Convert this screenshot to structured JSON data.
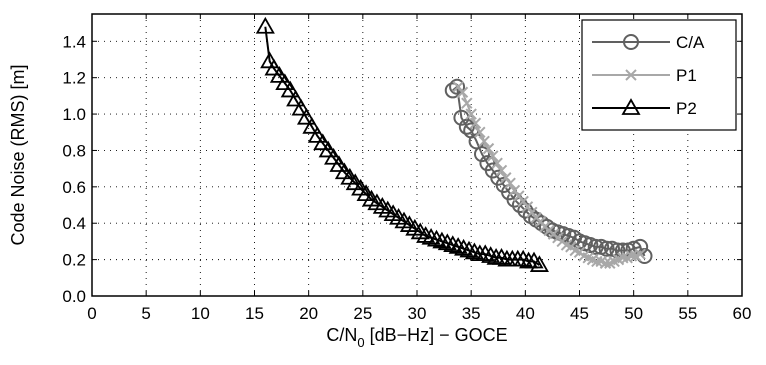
{
  "chart_data": {
    "type": "line",
    "xlabel": {
      "main": "C/N",
      "sub": "0",
      "rest": " [dB−Hz] − GOCE"
    },
    "ylabel": "Code Noise (RMS) [m]",
    "xlim": [
      0,
      60
    ],
    "ylim": [
      0,
      1.55
    ],
    "xticks": [
      "0",
      "5",
      "10",
      "15",
      "20",
      "25",
      "30",
      "35",
      "40",
      "45",
      "50",
      "55",
      "60"
    ],
    "yticks": [
      "0.0",
      "0.2",
      "0.4",
      "0.6",
      "0.8",
      "1.0",
      "1.2",
      "1.4"
    ],
    "grid": true,
    "legend_position": "top-right",
    "series": [
      {
        "name": "C/A",
        "marker": "circle",
        "color": "#606060",
        "x": [
          33.3,
          33.7,
          34.1,
          34.6,
          35.0,
          35.5,
          36.0,
          36.5,
          37.0,
          37.5,
          38.0,
          38.5,
          39.0,
          39.5,
          40.0,
          40.5,
          41.0,
          41.5,
          42.0,
          42.5,
          43.0,
          43.5,
          44.0,
          44.5,
          45.0,
          45.5,
          46.0,
          46.5,
          47.0,
          47.5,
          48.0,
          48.5,
          49.0,
          49.5,
          50.0,
          50.6,
          51.0
        ],
        "y": [
          1.13,
          1.15,
          0.98,
          0.93,
          0.91,
          0.85,
          0.78,
          0.73,
          0.69,
          0.65,
          0.61,
          0.57,
          0.53,
          0.5,
          0.47,
          0.44,
          0.42,
          0.4,
          0.38,
          0.36,
          0.35,
          0.34,
          0.33,
          0.32,
          0.3,
          0.29,
          0.28,
          0.27,
          0.27,
          0.26,
          0.26,
          0.25,
          0.25,
          0.25,
          0.26,
          0.27,
          0.22
        ]
      },
      {
        "name": "P1",
        "marker": "x",
        "color": "#a8a8a8",
        "x": [
          33.8,
          34.2,
          34.6,
          35.0,
          35.4,
          35.8,
          36.2,
          36.6,
          37.0,
          37.4,
          37.8,
          38.2,
          38.6,
          39.0,
          39.4,
          39.8,
          40.2,
          40.6,
          41.0,
          41.4,
          41.8,
          42.2,
          42.6,
          43.0,
          43.4,
          43.8,
          44.2,
          44.6,
          45.0,
          45.4,
          45.8,
          46.2,
          46.6,
          47.0,
          47.4,
          47.8,
          48.2,
          48.6,
          49.0,
          49.4,
          49.8,
          50.2,
          50.6
        ],
        "y": [
          1.15,
          1.12,
          1.06,
          1.0,
          0.95,
          0.9,
          0.85,
          0.81,
          0.77,
          0.73,
          0.69,
          0.65,
          0.62,
          0.58,
          0.55,
          0.52,
          0.49,
          0.46,
          0.43,
          0.41,
          0.38,
          0.36,
          0.34,
          0.32,
          0.3,
          0.28,
          0.27,
          0.25,
          0.24,
          0.22,
          0.21,
          0.2,
          0.19,
          0.19,
          0.18,
          0.18,
          0.19,
          0.2,
          0.21,
          0.21,
          0.22,
          0.22,
          0.23
        ]
      },
      {
        "name": "P2",
        "marker": "triangle",
        "color": "#000000",
        "x": [
          16.0,
          16.4,
          16.8,
          17.3,
          17.8,
          18.3,
          18.8,
          19.3,
          19.8,
          20.3,
          20.8,
          21.3,
          21.8,
          22.3,
          22.8,
          23.3,
          23.8,
          24.3,
          24.8,
          25.3,
          25.8,
          26.3,
          26.8,
          27.3,
          27.8,
          28.3,
          28.8,
          29.3,
          29.8,
          30.3,
          30.8,
          31.3,
          31.8,
          32.3,
          32.8,
          33.3,
          33.8,
          34.3,
          34.8,
          35.3,
          35.8,
          36.3,
          36.8,
          37.3,
          37.8,
          38.3,
          38.8,
          39.3,
          39.8,
          40.3,
          40.8,
          41.3
        ],
        "y": [
          1.48,
          1.29,
          1.25,
          1.21,
          1.17,
          1.13,
          1.08,
          1.03,
          0.98,
          0.93,
          0.88,
          0.84,
          0.8,
          0.76,
          0.72,
          0.68,
          0.65,
          0.62,
          0.59,
          0.56,
          0.53,
          0.51,
          0.49,
          0.47,
          0.45,
          0.43,
          0.41,
          0.39,
          0.37,
          0.35,
          0.33,
          0.32,
          0.31,
          0.3,
          0.29,
          0.28,
          0.27,
          0.26,
          0.25,
          0.24,
          0.23,
          0.23,
          0.22,
          0.21,
          0.21,
          0.2,
          0.2,
          0.2,
          0.2,
          0.19,
          0.19,
          0.17
        ]
      }
    ]
  }
}
